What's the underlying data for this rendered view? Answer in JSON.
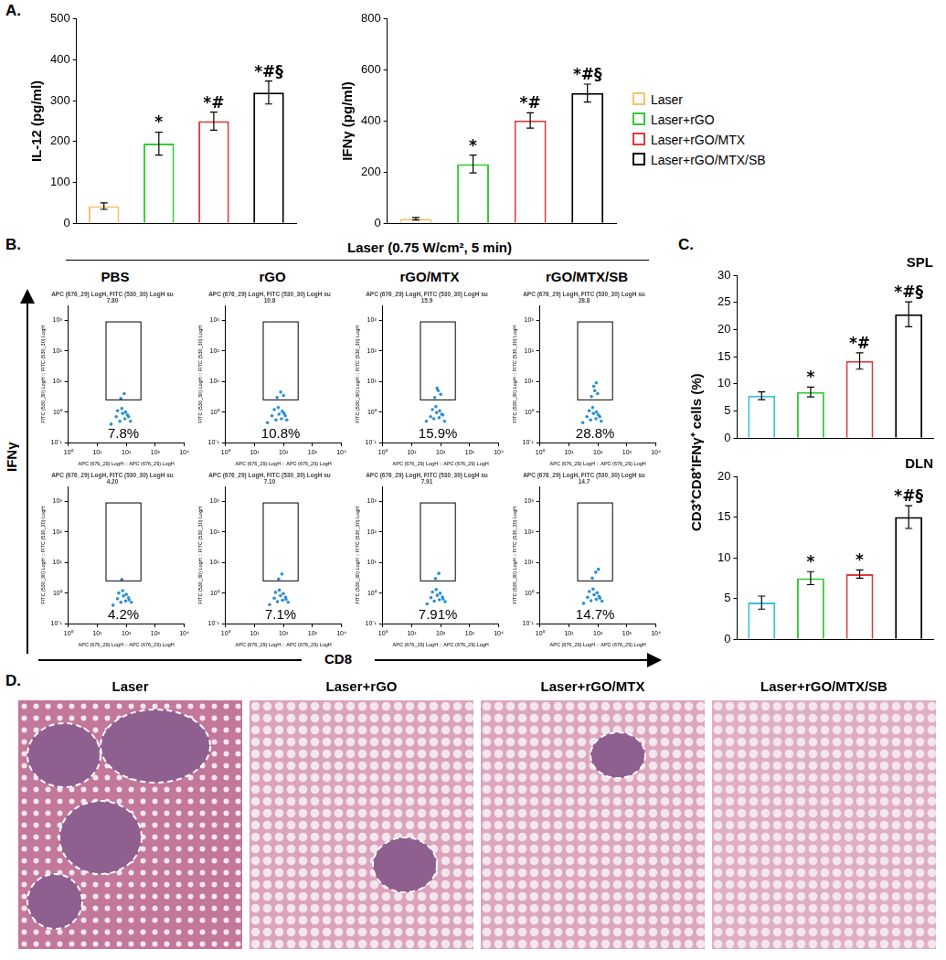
{
  "chart_data": [
    {
      "type": "bar",
      "y_label": "IL-12 (pg/ml)",
      "categories": [
        null,
        null,
        null,
        null
      ],
      "values": [
        42,
        195,
        250,
        320
      ],
      "errors": [
        8,
        28,
        22,
        28
      ],
      "annotations": [
        null,
        "*",
        "*#",
        "*#§"
      ],
      "colors": [
        "#f5c36b",
        "#33cc33",
        "#e03a3a",
        "#000000"
      ],
      "ylim": [
        0,
        500
      ],
      "yticks": [
        0,
        100,
        200,
        300,
        400,
        500
      ],
      "grid": false,
      "tick_labels": "y"
    },
    {
      "type": "bar",
      "y_label": "IFNγ (pg/ml)",
      "categories": [
        "Laser",
        "Laser+rGO",
        "Laser+rGO/MTX",
        "Laser+rGO/MTX/SB"
      ],
      "values": [
        18,
        232,
        403,
        510
      ],
      "errors": [
        5,
        35,
        30,
        35
      ],
      "annotations": [
        null,
        "*",
        "*#",
        "*#§"
      ],
      "colors": [
        "#f5c36b",
        "#33cc33",
        "#e03a3a",
        "#000000"
      ],
      "ylim": [
        0,
        800
      ],
      "yticks": [
        0,
        200,
        400,
        600,
        800
      ],
      "grid": false,
      "tick_labels": "y",
      "legend": "right"
    },
    {
      "type": "scatter",
      "title": [
        "APC (676_29) LogH, FITC (530_30) LogH su",
        "7.80"
      ],
      "x_label": "APC (676_29) LogH :: APC (676_29) LogH",
      "y_label": "FITC (530_30) LogH :: FITC (530_30) LogH",
      "x": [
        30,
        45,
        60,
        75,
        90,
        110,
        140,
        50,
        70,
        95,
        120,
        65,
        85
      ],
      "values": [
        0.4,
        0.7,
        0.5,
        0.9,
        0.6,
        0.8,
        0.5,
        1.1,
        1.3,
        1.0,
        0.7,
        2.8,
        4
      ],
      "color": "#2a8fd4",
      "log": true,
      "grid": false,
      "xlim": [
        1,
        10000
      ],
      "xticks": [
        {
          "value": 1,
          "label": "10⁰"
        },
        {
          "value": 10,
          "label": "10¹"
        },
        {
          "value": 100,
          "label": "10²"
        },
        {
          "value": 1000,
          "label": "10³"
        },
        {
          "value": 10000,
          "label": "10⁴"
        }
      ],
      "ylim": [
        0.1,
        3000
      ],
      "yticks": [
        {
          "value": 0.1,
          "label": "10⁻¹"
        },
        {
          "value": 1,
          "label": "10⁰"
        },
        {
          "value": 10,
          "label": "10¹"
        },
        {
          "value": 100,
          "label": "10²"
        },
        {
          "value": 1000,
          "label": "10³"
        }
      ],
      "gate": {
        "x": [
          20,
          320
        ],
        "y": [
          2.5,
          900
        ],
        "label": "7.8%"
      }
    },
    {
      "type": "scatter",
      "title": [
        "APC (676_29) LogH, FITC (530_30) LogH su",
        "10.8"
      ],
      "x_label": "APC (676_29) LogH :: APC (676_29) LogH",
      "y_label": "FITC (530_30) LogH :: FITC (530_30) LogH",
      "x": [
        28,
        40,
        55,
        70,
        85,
        105,
        130,
        48,
        66,
        90,
        115,
        60,
        80,
        100
      ],
      "values": [
        0.45,
        0.75,
        0.55,
        0.85,
        0.6,
        0.9,
        0.55,
        1.2,
        1.4,
        1.05,
        0.75,
        3,
        4.5,
        3.5
      ],
      "color": "#2a8fd4",
      "log": true,
      "grid": false,
      "xlim": [
        1,
        10000
      ],
      "xticks": [
        {
          "value": 1,
          "label": "10⁰"
        },
        {
          "value": 10,
          "label": "10¹"
        },
        {
          "value": 100,
          "label": "10²"
        },
        {
          "value": 1000,
          "label": "10³"
        },
        {
          "value": 10000,
          "label": "10⁴"
        }
      ],
      "ylim": [
        0.1,
        3000
      ],
      "yticks": [
        {
          "value": 0.1,
          "label": "10⁻¹"
        },
        {
          "value": 1,
          "label": "10⁰"
        },
        {
          "value": 10,
          "label": "10¹"
        },
        {
          "value": 100,
          "label": "10²"
        },
        {
          "value": 1000,
          "label": "10³"
        }
      ],
      "gate": {
        "x": [
          20,
          320
        ],
        "y": [
          2.5,
          900
        ],
        "label": "10.8%"
      }
    },
    {
      "type": "scatter",
      "title": [
        "APC (676_29) LogH, FITC (530_30) LogH su",
        "15.9"
      ],
      "x_label": "APC (676_29) LogH :: APC (676_29) LogH",
      "y_label": "FITC (530_30) LogH :: FITC (530_30) LogH",
      "x": [
        32,
        45,
        58,
        72,
        88,
        108,
        135,
        52,
        68,
        92,
        118,
        62,
        82,
        100,
        75
      ],
      "values": [
        0.5,
        0.7,
        0.6,
        0.95,
        0.65,
        0.85,
        0.5,
        1.2,
        1.5,
        1.1,
        0.8,
        3,
        5,
        3.8,
        6
      ],
      "color": "#2a8fd4",
      "log": true,
      "grid": false,
      "xlim": [
        1,
        10000
      ],
      "xticks": [
        {
          "value": 1,
          "label": "10⁰"
        },
        {
          "value": 10,
          "label": "10¹"
        },
        {
          "value": 100,
          "label": "10²"
        },
        {
          "value": 1000,
          "label": "10³"
        },
        {
          "value": 10000,
          "label": "10⁴"
        }
      ],
      "ylim": [
        0.1,
        3000
      ],
      "yticks": [
        {
          "value": 0.1,
          "label": "10⁻¹"
        },
        {
          "value": 1,
          "label": "10⁰"
        },
        {
          "value": 10,
          "label": "10¹"
        },
        {
          "value": 100,
          "label": "10²"
        },
        {
          "value": 1000,
          "label": "10³"
        }
      ],
      "gate": {
        "x": [
          20,
          320
        ],
        "y": [
          2.5,
          900
        ],
        "label": "15.9%"
      }
    },
    {
      "type": "scatter",
      "title": [
        "APC (676_29) LogH, FITC (530_30) LogH su",
        "28.8"
      ],
      "x_label": "APC (676_29) LogH :: APC (676_29) LogH",
      "y_label": "FITC (530_30) LogH :: FITC (530_30) LogH",
      "x": [
        30,
        42,
        56,
        70,
        86,
        104,
        130,
        50,
        66,
        90,
        116,
        60,
        78,
        98,
        72,
        88
      ],
      "values": [
        0.45,
        0.7,
        0.55,
        0.9,
        0.6,
        0.8,
        0.5,
        1.1,
        1.4,
        1.0,
        0.7,
        3.2,
        5,
        4,
        7,
        9
      ],
      "color": "#2a8fd4",
      "log": true,
      "grid": false,
      "xlim": [
        1,
        10000
      ],
      "xticks": [
        {
          "value": 1,
          "label": "10⁰"
        },
        {
          "value": 10,
          "label": "10¹"
        },
        {
          "value": 100,
          "label": "10²"
        },
        {
          "value": 1000,
          "label": "10³"
        },
        {
          "value": 10000,
          "label": "10⁴"
        }
      ],
      "ylim": [
        0.1,
        3000
      ],
      "yticks": [
        {
          "value": 0.1,
          "label": "10⁻¹"
        },
        {
          "value": 1,
          "label": "10⁰"
        },
        {
          "value": 10,
          "label": "10¹"
        },
        {
          "value": 100,
          "label": "10²"
        },
        {
          "value": 1000,
          "label": "10³"
        }
      ],
      "gate": {
        "x": [
          20,
          320
        ],
        "y": [
          2.5,
          900
        ],
        "label": "28.8%"
      }
    },
    {
      "type": "scatter",
      "title": [
        "APC (676_29) LogH, FITC (530_30) LogH su",
        "4.20"
      ],
      "x_label": "APC (676_29) LogH :: APC (676_29) LogH",
      "y_label": "FITC (530_30) LogH :: FITC (530_30) LogH",
      "x": [
        35,
        50,
        65,
        80,
        95,
        120,
        150,
        55,
        75,
        100,
        125,
        70
      ],
      "values": [
        0.4,
        0.65,
        0.5,
        0.8,
        0.55,
        0.7,
        0.5,
        1.0,
        1.2,
        0.9,
        0.6,
        2.8
      ],
      "color": "#2a8fd4",
      "log": true,
      "grid": false,
      "xlim": [
        1,
        10000
      ],
      "xticks": [
        {
          "value": 1,
          "label": "10⁰"
        },
        {
          "value": 10,
          "label": "10¹"
        },
        {
          "value": 100,
          "label": "10²"
        },
        {
          "value": 1000,
          "label": "10³"
        },
        {
          "value": 10000,
          "label": "10⁴"
        }
      ],
      "ylim": [
        0.1,
        3000
      ],
      "yticks": [
        {
          "value": 0.1,
          "label": "10⁻¹"
        },
        {
          "value": 1,
          "label": "10⁰"
        },
        {
          "value": 10,
          "label": "10¹"
        },
        {
          "value": 100,
          "label": "10²"
        },
        {
          "value": 1000,
          "label": "10³"
        }
      ],
      "gate": {
        "x": [
          20,
          320
        ],
        "y": [
          2.5,
          900
        ],
        "label": "4.2%"
      }
    },
    {
      "type": "scatter",
      "title": [
        "APC (676_29) LogH, FITC (530_30) LogH su",
        "7.10"
      ],
      "x_label": "APC (676_29) LogH :: APC (676_29) LogH",
      "y_label": "FITC (530_30) LogH :: FITC (530_30) LogH",
      "x": [
        33,
        48,
        62,
        78,
        92,
        118,
        145,
        53,
        72,
        98,
        122,
        68,
        88
      ],
      "values": [
        0.42,
        0.68,
        0.52,
        0.82,
        0.58,
        0.72,
        0.5,
        1.05,
        1.25,
        0.95,
        0.62,
        2.9,
        4.2
      ],
      "color": "#2a8fd4",
      "log": true,
      "grid": false,
      "xlim": [
        1,
        10000
      ],
      "xticks": [
        {
          "value": 1,
          "label": "10⁰"
        },
        {
          "value": 10,
          "label": "10¹"
        },
        {
          "value": 100,
          "label": "10²"
        },
        {
          "value": 1000,
          "label": "10³"
        },
        {
          "value": 10000,
          "label": "10⁴"
        }
      ],
      "ylim": [
        0.1,
        3000
      ],
      "yticks": [
        {
          "value": 0.1,
          "label": "10⁻¹"
        },
        {
          "value": 1,
          "label": "10⁰"
        },
        {
          "value": 10,
          "label": "10¹"
        },
        {
          "value": 100,
          "label": "10²"
        },
        {
          "value": 1000,
          "label": "10³"
        }
      ],
      "gate": {
        "x": [
          20,
          320
        ],
        "y": [
          2.5,
          900
        ],
        "label": "7.1%"
      }
    },
    {
      "type": "scatter",
      "title": [
        "APC (676_29) LogH, FITC (530_30) LogH su",
        "7.91"
      ],
      "x_label": "APC (676_29) LogH :: APC (676_29) LogH",
      "y_label": "FITC (530_30) LogH :: FITC (530_30) LogH",
      "x": [
        34,
        46,
        60,
        76,
        90,
        115,
        142,
        52,
        70,
        96,
        120,
        66,
        86
      ],
      "values": [
        0.44,
        0.7,
        0.54,
        0.84,
        0.6,
        0.74,
        0.52,
        1.08,
        1.3,
        0.98,
        0.64,
        3.0,
        4.4
      ],
      "color": "#2a8fd4",
      "log": true,
      "grid": false,
      "xlim": [
        1,
        10000
      ],
      "xticks": [
        {
          "value": 1,
          "label": "10⁰"
        },
        {
          "value": 10,
          "label": "10¹"
        },
        {
          "value": 100,
          "label": "10²"
        },
        {
          "value": 1000,
          "label": "10³"
        },
        {
          "value": 10000,
          "label": "10⁴"
        }
      ],
      "ylim": [
        0.1,
        3000
      ],
      "yticks": [
        {
          "value": 0.1,
          "label": "10⁻¹"
        },
        {
          "value": 1,
          "label": "10⁰"
        },
        {
          "value": 10,
          "label": "10¹"
        },
        {
          "value": 100,
          "label": "10²"
        },
        {
          "value": 1000,
          "label": "10³"
        }
      ],
      "gate": {
        "x": [
          20,
          320
        ],
        "y": [
          2.5,
          900
        ],
        "label": "7.91%"
      }
    },
    {
      "type": "scatter",
      "title": [
        "APC (676_29) LogH, FITC (530_30) LogH su",
        "14.7"
      ],
      "x_label": "APC (676_29) LogH :: APC (676_29) LogH",
      "y_label": "FITC (530_30) LogH :: FITC (530_30) LogH",
      "x": [
        32,
        44,
        58,
        74,
        88,
        110,
        138,
        50,
        68,
        94,
        118,
        64,
        84,
        104
      ],
      "values": [
        0.46,
        0.72,
        0.56,
        0.88,
        0.62,
        0.78,
        0.54,
        1.12,
        1.35,
        1.02,
        0.68,
        3.1,
        4.8,
        6
      ],
      "color": "#2a8fd4",
      "log": true,
      "grid": false,
      "xlim": [
        1,
        10000
      ],
      "xticks": [
        {
          "value": 1,
          "label": "10⁰"
        },
        {
          "value": 10,
          "label": "10¹"
        },
        {
          "value": 100,
          "label": "10²"
        },
        {
          "value": 1000,
          "label": "10³"
        },
        {
          "value": 10000,
          "label": "10⁴"
        }
      ],
      "ylim": [
        0.1,
        3000
      ],
      "yticks": [
        {
          "value": 0.1,
          "label": "10⁻¹"
        },
        {
          "value": 1,
          "label": "10⁰"
        },
        {
          "value": 10,
          "label": "10¹"
        },
        {
          "value": 100,
          "label": "10²"
        },
        {
          "value": 1000,
          "label": "10³"
        }
      ],
      "gate": {
        "x": [
          20,
          320
        ],
        "y": [
          2.5,
          900
        ],
        "label": "14.7%"
      }
    },
    {
      "type": "bar",
      "title": "SPL",
      "categories": [
        null,
        null,
        null,
        null
      ],
      "values": [
        7.8,
        8.5,
        14.2,
        22.8
      ],
      "errors": [
        0.7,
        0.9,
        1.5,
        2.3
      ],
      "annotations": [
        null,
        "*",
        "*#",
        "*#§"
      ],
      "colors": [
        "#33c4d6",
        "#33cc33",
        "#e03a3a",
        "#000000"
      ],
      "ylim": [
        0,
        30
      ],
      "yticks": [
        0,
        5,
        10,
        15,
        20,
        25,
        30
      ],
      "grid": false,
      "tick_labels": "y"
    },
    {
      "type": "bar",
      "title": "DLN",
      "categories": [
        null,
        null,
        null,
        null
      ],
      "values": [
        4.5,
        7.5,
        8.0,
        15.0
      ],
      "errors": [
        0.8,
        0.8,
        0.5,
        1.4
      ],
      "annotations": [
        null,
        "*",
        "*",
        "*#§"
      ],
      "colors": [
        "#33c4d6",
        "#33cc33",
        "#e03a3a",
        "#000000"
      ],
      "ylim": [
        0,
        20
      ],
      "yticks": [
        0,
        5,
        10,
        15,
        20
      ],
      "grid": false,
      "tick_labels": "y"
    }
  ],
  "figure": {
    "panel_labels": [
      "A.",
      "B.",
      "C.",
      "D."
    ],
    "flow_header": "Laser (0.75 W/cm², 5 min)",
    "flow_columns": [
      "PBS",
      "rGO",
      "rGO/MTX",
      "rGO/MTX/SB"
    ],
    "flow_y_title": "IFNγ",
    "flow_x_title": "CD8",
    "c_y_title": "CD3⁺CD8⁺IFNγ⁺ cells (%)",
    "histology_titles": [
      "Laser",
      "Laser+rGO",
      "Laser+rGO/MTX",
      "Laser+rGO/MTX/SB"
    ]
  }
}
